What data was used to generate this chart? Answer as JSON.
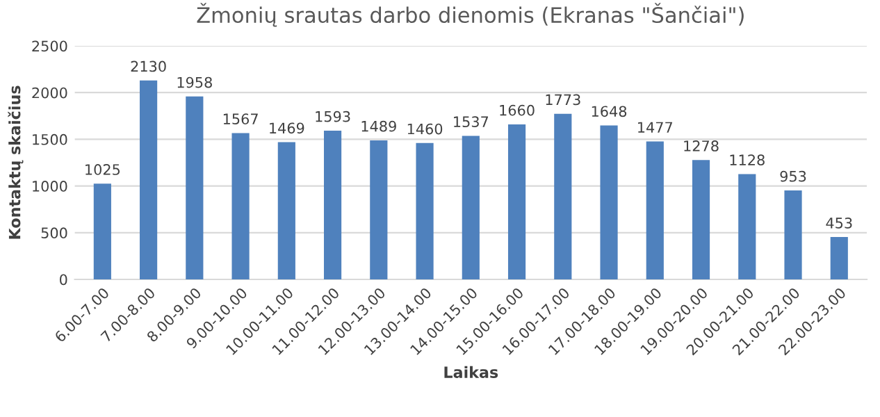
{
  "chart_data": {
    "type": "bar",
    "title": "Žmonių srautas darbo dienomis (Ekranas \"Šančiai\")",
    "xlabel": "Laikas",
    "ylabel": "Kontaktų skaičius",
    "categories": [
      "6.00-7.00",
      "7.00-8.00",
      "8.00-9.00",
      "9.00-10.00",
      "10.00-11.00",
      "11.00-12.00",
      "12.00-13.00",
      "13.00-14.00",
      "14.00-15.00",
      "15.00-16.00",
      "16.00-17.00",
      "17.00-18.00",
      "18.00-19.00",
      "19.00-20.00",
      "20.00-21.00",
      "21.00-22.00",
      "22.00-23.00"
    ],
    "values": [
      1025,
      2130,
      1958,
      1567,
      1469,
      1593,
      1489,
      1460,
      1537,
      1660,
      1773,
      1648,
      1477,
      1278,
      1128,
      953,
      453
    ],
    "color": "#4f81bd",
    "ylim": [
      0,
      2500
    ],
    "yticks": [
      0,
      500,
      1000,
      1500,
      2000,
      2500
    ],
    "grid": "y",
    "data_labels": true
  }
}
